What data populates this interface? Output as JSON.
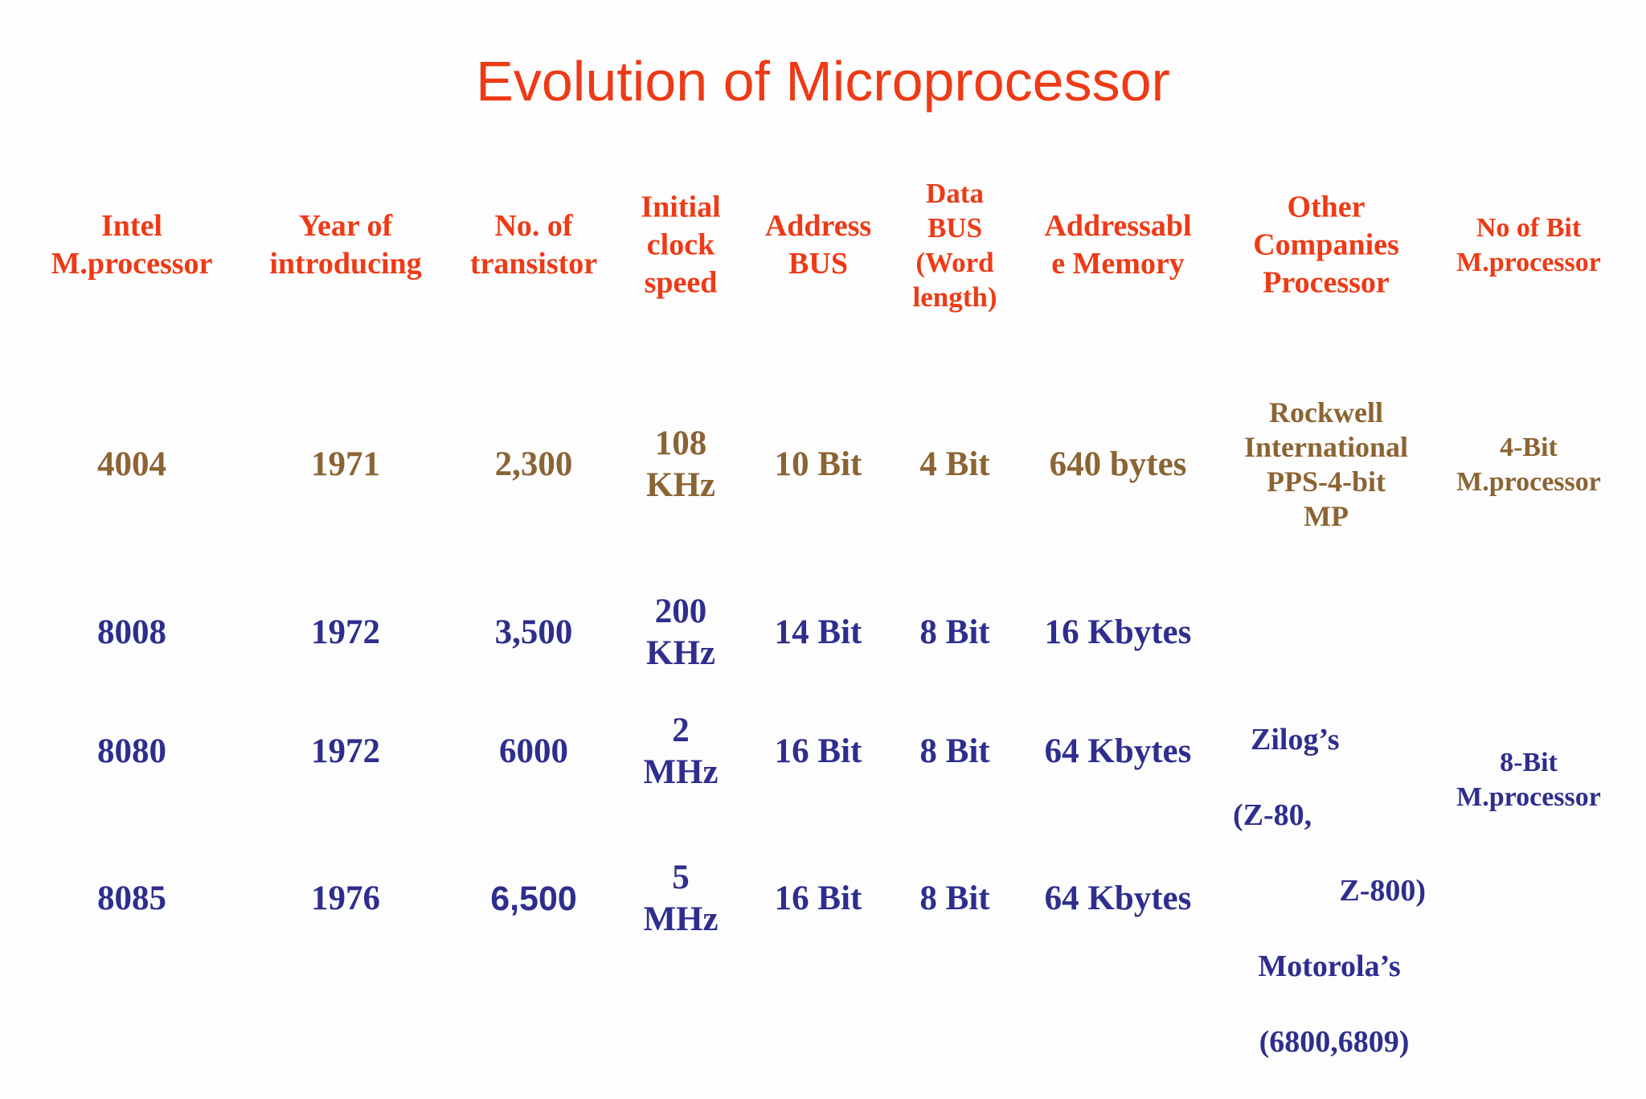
{
  "title": "Evolution of Microprocessor",
  "headers": [
    "Intel\nM.processor",
    "Year of\nintroducing",
    "No. of\ntransistor",
    "Initial\nclock\nspeed",
    "Address\nBUS",
    "Data\nBUS\n(Word\nlength)",
    "Addressabl\ne Memory",
    "Other\nCompanies\nProcessor",
    "No of Bit\nM.processor"
  ],
  "rows": [
    {
      "processor": "4004",
      "year": "1971",
      "transistors": "2,300",
      "clock": "108\nKHz",
      "address_bus": "10 Bit",
      "data_bus": "4 Bit",
      "memory": "640 bytes"
    },
    {
      "processor": "8008",
      "year": "1972",
      "transistors": "3,500",
      "clock": "200\nKHz",
      "address_bus": "14 Bit",
      "data_bus": "8 Bit",
      "memory": "16 Kbytes"
    },
    {
      "processor": "8080",
      "year": "1972",
      "transistors": "6000",
      "clock": "2\nMHz",
      "address_bus": "16 Bit",
      "data_bus": "8 Bit",
      "memory": "64 Kbytes"
    },
    {
      "processor": "8085",
      "year": "1976",
      "transistors": "6,500",
      "clock": "5\nMHz",
      "address_bus": "16 Bit",
      "data_bus": "8 Bit",
      "memory": "64 Kbytes"
    }
  ],
  "other_companies": {
    "rockwell": "Rockwell\nInternational\nPPS-4-bit\nMP",
    "zilog_line1": "Zilog’s",
    "zilog_line2": "(Z-80,",
    "zilog_line3": "Z-800)",
    "motorola_line1": "Motorola’s",
    "motorola_line2": "(6800,6809)"
  },
  "bit_class": {
    "four_bit": "4-Bit\nM.processor",
    "eight_bit": "8-Bit\nM.processor"
  },
  "colors": {
    "title": "#ee3a16",
    "header": "#ee3a16",
    "row_4bit": "#8b6433",
    "row_8bit": "#2e2e8e",
    "background": "#fdfdfd"
  }
}
